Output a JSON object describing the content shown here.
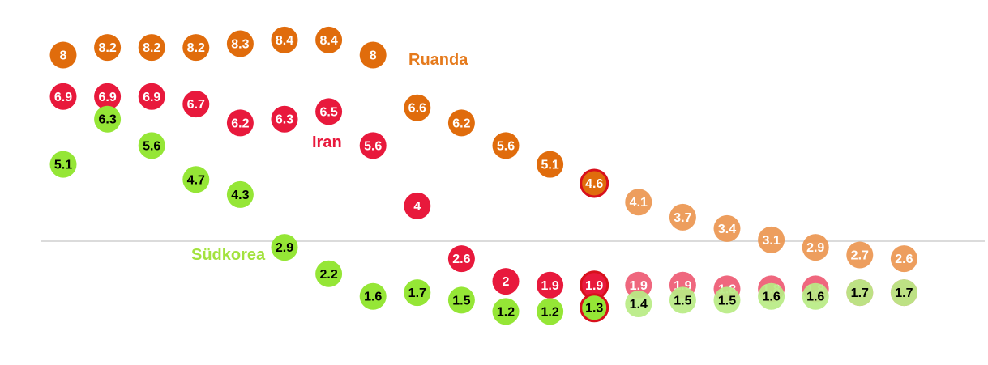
{
  "chart_data": {
    "type": "scatter",
    "x_count": 20,
    "ylim": [
      0,
      9
    ],
    "grid": false,
    "reference_line": 3.0,
    "highlight_index": 12,
    "faded_from_index": 13,
    "series": [
      {
        "name": "Ruanda",
        "color": "#e06c0c",
        "faded_color": "#eb9650",
        "values": [
          8,
          8.2,
          8.2,
          8.2,
          8.3,
          8.4,
          8.4,
          8,
          6.6,
          6.2,
          5.6,
          5.1,
          4.6,
          4.1,
          3.7,
          3.4,
          3.1,
          2.9,
          2.7,
          2.6
        ],
        "text_color": "#ffffff"
      },
      {
        "name": "Iran",
        "color": "#e8193c",
        "faded_color": "#ee5a73",
        "values": [
          6.9,
          6.9,
          6.9,
          6.7,
          6.2,
          6.3,
          6.5,
          5.6,
          4,
          2.6,
          2,
          1.9,
          1.9,
          1.9,
          1.9,
          1.8,
          1.8,
          1.8,
          1.7,
          1.7
        ],
        "text_color": "#ffffff"
      },
      {
        "name": "Südkorea",
        "color": "#95e636",
        "faded_color": "#b9eb84",
        "values": [
          5.1,
          6.3,
          5.6,
          4.7,
          4.3,
          2.9,
          2.2,
          1.6,
          1.7,
          1.5,
          1.2,
          1.2,
          1.3,
          1.4,
          1.5,
          1.5,
          1.6,
          1.6,
          1.7,
          1.7
        ],
        "text_color": "#000000"
      }
    ],
    "labels": [
      {
        "series": "Ruanda",
        "text": "Ruanda",
        "color": "#e57a1c"
      },
      {
        "series": "Iran",
        "text": "Iran",
        "color": "#e8193c"
      },
      {
        "series": "Südkorea",
        "text": "Südkorea",
        "color": "#a3e23e"
      }
    ]
  }
}
